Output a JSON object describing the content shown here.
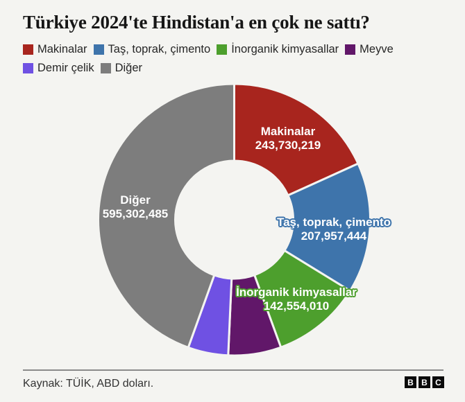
{
  "title": "Türkiye 2024'te Hindistan'a en çok ne sattı?",
  "colors": {
    "background": "#f4f4f1",
    "title_text": "#161616",
    "legend_text": "#262626",
    "label_text": "#ffffff",
    "footer_text": "#333333",
    "footer_rule": "#8a8a8a",
    "logo_block": "#0a0a0a"
  },
  "chart_data": {
    "type": "pie",
    "subtype": "donut",
    "title": "Türkiye 2024'te Hindistan'a en çok ne sattı?",
    "unit": "ABD doları",
    "start_angle_deg": 0,
    "direction": "clockwise",
    "legend_position": "top",
    "slices": [
      {
        "label": "Makinalar",
        "value": 243730219,
        "value_label": "243,730,219",
        "color": "#a8251e",
        "labeled_on_chart": true
      },
      {
        "label": "Taş, toprak, çimento",
        "value": 207957444,
        "value_label": "207,957,444",
        "color": "#3e74ab",
        "labeled_on_chart": true
      },
      {
        "label": "İnorganik kimyasallar",
        "value": 142554010,
        "value_label": "142,554,010",
        "color": "#4d9f2d",
        "labeled_on_chart": true
      },
      {
        "label": "Meyve",
        "value": 84000000,
        "value_label": "",
        "color": "#611769",
        "labeled_on_chart": false,
        "estimated": true
      },
      {
        "label": "Demir çelik",
        "value": 64000000,
        "value_label": "",
        "color": "#6f51e3",
        "labeled_on_chart": false,
        "estimated": true
      },
      {
        "label": "Diğer",
        "value": 595302485,
        "value_label": "595,302,485",
        "color": "#7d7d7d",
        "labeled_on_chart": true
      }
    ]
  },
  "footer": {
    "source": "Kaynak: TÜİK, ABD doları.",
    "logo": [
      "B",
      "B",
      "C"
    ]
  }
}
